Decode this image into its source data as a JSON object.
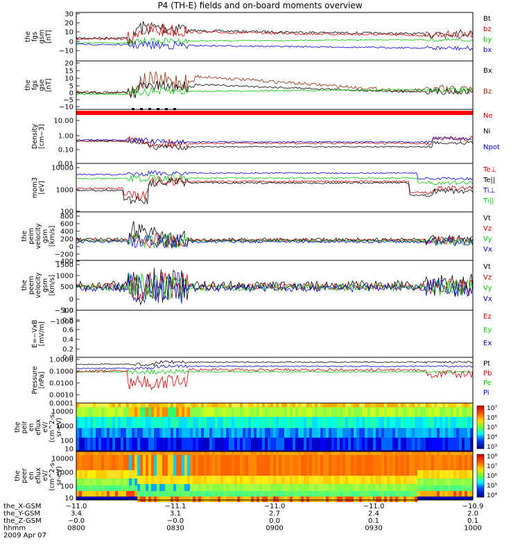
{
  "title": "P4 (TH-E) fields and on-board moments overview",
  "date": "2009 Apr 07",
  "panels": [
    {
      "ylabel": [
        "the",
        "fgs",
        "gsm",
        "[nT]"
      ],
      "ticks": [
        "30",
        "20",
        "10",
        "0",
        "−10"
      ],
      "legend": [
        {
          "label": "Bt",
          "color": "#000000"
        },
        {
          "label": "bz",
          "color": "#cc0000"
        },
        {
          "label": "by",
          "color": "#00cc00"
        },
        {
          "label": "bx",
          "color": "#0000cc"
        }
      ]
    },
    {
      "ylabel": [
        "the",
        "fgs",
        "gse",
        "[nT]"
      ],
      "ticks": [
        "20",
        "15",
        "10",
        "5",
        "0",
        "−5",
        "−10"
      ],
      "legend": [
        {
          "label": "Bx",
          "color": "#000000"
        },
        {
          "label": "Bz",
          "color": "#8b2500"
        }
      ]
    },
    {
      "ylabel": [
        "Density",
        "[cm−3]"
      ],
      "ticks": [
        "10.00",
        "1.00",
        "0.10",
        "0.01"
      ],
      "legend": [
        {
          "label": "Ne",
          "color": "#cc0000"
        },
        {
          "label": "Ni",
          "color": "#000000"
        },
        {
          "label": "Npot",
          "color": "#0000cc"
        }
      ]
    },
    {
      "ylabel": [
        "mom3",
        "[eV]"
      ],
      "ticks": [
        "10000",
        "1000",
        "100"
      ],
      "legend": [
        {
          "label": "Te⊥",
          "color": "#cc0000"
        },
        {
          "label": "Te||",
          "color": "#000000"
        },
        {
          "label": "Ti⊥",
          "color": "#0000cc"
        },
        {
          "label": "Ti||",
          "color": "#00cc00"
        }
      ]
    },
    {
      "ylabel": [
        "the",
        "peim",
        "velocity",
        "gsm",
        "[km/s]"
      ],
      "ticks": [
        "800",
        "600",
        "400",
        "200",
        "0",
        "−200",
        "−400"
      ],
      "legend": [
        {
          "label": "Vt",
          "color": "#000000"
        },
        {
          "label": "Vz",
          "color": "#cc0000"
        },
        {
          "label": "Vy",
          "color": "#00cc00"
        },
        {
          "label": "Vx",
          "color": "#0000cc"
        }
      ]
    },
    {
      "ylabel": [
        "the",
        "peem",
        "velocity",
        "gsm",
        "[km/s]"
      ],
      "ticks": [
        "1500",
        "1000",
        "500",
        "0",
        "−500",
        "−1000"
      ],
      "legend": [
        {
          "label": "Vt",
          "color": "#000000"
        },
        {
          "label": "Vz",
          "color": "#cc0000"
        },
        {
          "label": "Vy",
          "color": "#00cc00"
        },
        {
          "label": "Vx",
          "color": "#0000cc"
        }
      ]
    },
    {
      "ylabel": [
        "E=−VxB",
        "[mV/m]"
      ],
      "ticks": [
        "1.0",
        "0.8",
        "0.6",
        "0.4",
        "0.2",
        "0.0"
      ],
      "legend": [
        {
          "label": "Ez",
          "color": "#cc0000"
        },
        {
          "label": "Ey",
          "color": "#00cc00"
        },
        {
          "label": "Ex",
          "color": "#0000cc"
        }
      ]
    },
    {
      "ylabel": [
        "Pressure",
        "[nPa]"
      ],
      "ticks": [
        "1.0000",
        "0.1000",
        "0.0100",
        "0.0010",
        "0.0001"
      ],
      "legend": [
        {
          "label": "Pt",
          "color": "#000000"
        },
        {
          "label": "Pb",
          "color": "#cc0000"
        },
        {
          "label": "Pe",
          "color": "#00cc00"
        },
        {
          "label": "Pi",
          "color": "#0000cc"
        }
      ]
    },
    {
      "ylabel": [
        "the",
        "peir",
        "en",
        "eflux",
        "eV/",
        "(cm^2-s-",
        "sr-eV)"
      ],
      "ticks": [
        "10000",
        "1000",
        "100",
        "10"
      ],
      "colorbar": [
        "10⁷",
        "10⁶",
        "10⁵",
        "10⁴",
        "10³"
      ]
    },
    {
      "ylabel": [
        "the",
        "peer",
        "en",
        "eflux",
        "eV/",
        "(cm^2-s-",
        "sr-eV)"
      ],
      "ticks": [
        "10000",
        "1000",
        "100",
        "10"
      ],
      "colorbar": [
        "10⁸",
        "10⁷",
        "10⁶",
        "10⁵",
        "10⁴"
      ]
    }
  ],
  "xaxis": {
    "row_labels": [
      "the_X-GSM",
      "the_Y-GSM",
      "the_Z-GSM",
      "hhmm"
    ],
    "columns": [
      [
        "−11.0",
        "3.4",
        "−0.0",
        "0800"
      ],
      [
        "−11.1",
        "3.1",
        "−0.0",
        "0830"
      ],
      [
        "−11.0",
        "2.7",
        "0.0",
        "0900"
      ],
      [
        "−11.0",
        "2.4",
        "0.1",
        "0930"
      ],
      [
        "−10.9",
        "2.0",
        "0.1",
        "1000"
      ]
    ]
  },
  "chart_data": {
    "type": "line",
    "title": "P4 (TH-E) fields and on-board moments overview",
    "x": [
      "0800",
      "0830",
      "0900",
      "0930",
      "1000"
    ],
    "xlabel": "hhmm",
    "series": [
      {
        "name": "Bt",
        "values": [
          5,
          20,
          18,
          15,
          12
        ]
      },
      {
        "name": "bz",
        "values": [
          4,
          18,
          17,
          14,
          8
        ]
      },
      {
        "name": "by",
        "values": [
          -1,
          1,
          2,
          2,
          3
        ]
      },
      {
        "name": "bx",
        "values": [
          -3,
          -4,
          -5,
          -6,
          -6
        ]
      }
    ],
    "ylabel": "the fgs gsm [nT]",
    "ylim": [
      -15,
      32
    ]
  }
}
